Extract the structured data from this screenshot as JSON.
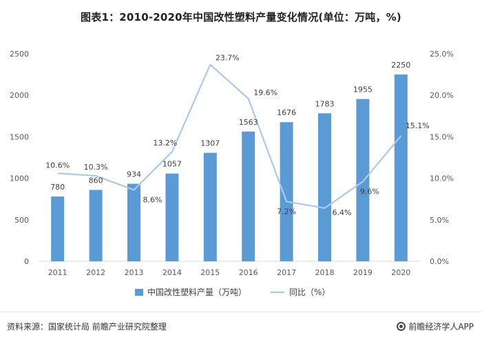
{
  "title": "图表1：2010-2020年中国改性塑料产量变化情况(单位：万吨，%)",
  "colors": {
    "bar": "#5b9bd5",
    "line": "#a9c9ef",
    "axis": "#d9d9d9",
    "text": "#595959"
  },
  "chart_data": {
    "type": "bar",
    "title": "图表1：2010-2020年中国改性塑料产量变化情况(单位：万吨，%)",
    "categories": [
      "2011",
      "2012",
      "2013",
      "2014",
      "2015",
      "2016",
      "2017",
      "2018",
      "2019",
      "2020"
    ],
    "series": [
      {
        "name": "中国改性塑料产量（万吨）",
        "type": "bar",
        "axis": "left",
        "values": [
          780,
          860,
          934,
          1057,
          1307,
          1563,
          1676,
          1783,
          1955,
          2250
        ],
        "labels": [
          "780",
          "860",
          "934",
          "1057",
          "1307",
          "1563",
          "1676",
          "1783",
          "1955",
          "2250"
        ]
      },
      {
        "name": "同比（%）",
        "type": "line",
        "axis": "right",
        "values": [
          10.6,
          10.3,
          8.6,
          13.2,
          23.7,
          19.6,
          7.2,
          6.4,
          9.6,
          15.1
        ],
        "labels": [
          "10.6%",
          "10.3%",
          "8.6%",
          "13.2%",
          "23.7%",
          "19.6%",
          "7.2%",
          "6.4%",
          "9.6%",
          "15.1%"
        ]
      }
    ],
    "y_left": {
      "ylim": [
        0,
        2500
      ],
      "ticks": [
        "0",
        "500",
        "1000",
        "1500",
        "2000",
        "2500"
      ]
    },
    "y_right": {
      "ylim": [
        0,
        25
      ],
      "ticks": [
        "0.0%",
        "5.0%",
        "10.0%",
        "15.0%",
        "20.0%",
        "25.0%"
      ]
    },
    "grid": false,
    "legend_position": "bottom-center"
  },
  "legend": [
    {
      "label": "中国改性塑料产量（万吨）",
      "kind": "bar"
    },
    {
      "label": "同比（%）",
      "kind": "line"
    }
  ],
  "footer": {
    "source": "资料来源：国家统计局 前瞻产业研究院整理",
    "brand": "前瞻经济学人APP"
  }
}
